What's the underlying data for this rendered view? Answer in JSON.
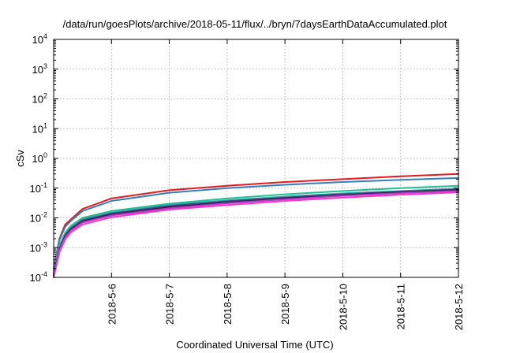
{
  "chart_data": {
    "type": "line",
    "title": "/data/run/goesPlots/archive/2018-05-11/flux/../bryn/7daysEarthDataAccumulated.plot",
    "xlabel": "Coordinated Universal Time (UTC)",
    "ylabel": "cSv",
    "y_scale": "log",
    "ylim": [
      0.0001,
      10000
    ],
    "xlim": [
      "2018-05-05",
      "2018-05-12"
    ],
    "grid": true,
    "legend": "none",
    "x_ticks": [
      "2018-5-6",
      "2018-5-7",
      "2018-5-8",
      "2018-5-9",
      "2018-5-10",
      "2018-5-11",
      "2018-5-12"
    ],
    "y_ticks": [
      {
        "value": 0.0001,
        "base": "10",
        "exp": "-4"
      },
      {
        "value": 0.001,
        "base": "10",
        "exp": "-3"
      },
      {
        "value": 0.01,
        "base": "10",
        "exp": "-2"
      },
      {
        "value": 0.1,
        "base": "10",
        "exp": "-1"
      },
      {
        "value": 1,
        "base": "10",
        "exp": "0"
      },
      {
        "value": 10,
        "base": "10",
        "exp": "1"
      },
      {
        "value": 100,
        "base": "10",
        "exp": "2"
      },
      {
        "value": 1000,
        "base": "10",
        "exp": "3"
      },
      {
        "value": 10000,
        "base": "10",
        "exp": "4"
      }
    ],
    "x": [
      "2018-05-05",
      "2018-05-05 02:24",
      "2018-05-05 04:48",
      "2018-05-05 07:12",
      "2018-05-05 12:00",
      "2018-05-06",
      "2018-05-07",
      "2018-05-08",
      "2018-05-09",
      "2018-05-10",
      "2018-05-11",
      "2018-05-12"
    ],
    "series": [
      {
        "color": "#e41a1c",
        "values": [
          0.0002,
          0.002,
          0.006,
          0.009,
          0.02,
          0.045,
          0.085,
          0.12,
          0.16,
          0.2,
          0.25,
          0.3
        ]
      },
      {
        "color": "#377eb8",
        "values": [
          0.0002,
          0.0018,
          0.005,
          0.008,
          0.017,
          0.037,
          0.07,
          0.1,
          0.13,
          0.16,
          0.19,
          0.22
        ]
      },
      {
        "color": "#1fbf8f",
        "values": [
          0.00015,
          0.0012,
          0.0032,
          0.0055,
          0.01,
          0.017,
          0.03,
          0.045,
          0.062,
          0.08,
          0.1,
          0.12
        ]
      },
      {
        "color": "#2fa4a4",
        "values": [
          0.00013,
          0.001,
          0.0028,
          0.0048,
          0.009,
          0.015,
          0.027,
          0.039,
          0.052,
          0.067,
          0.08,
          0.097
        ]
      },
      {
        "color": "#4a3f8f",
        "values": [
          0.00012,
          0.0009,
          0.0026,
          0.0044,
          0.0082,
          0.014,
          0.025,
          0.036,
          0.048,
          0.062,
          0.076,
          0.09
        ]
      },
      {
        "color": "#332244",
        "values": [
          0.00011,
          0.00085,
          0.0024,
          0.0041,
          0.0076,
          0.013,
          0.023,
          0.033,
          0.045,
          0.058,
          0.072,
          0.086
        ]
      },
      {
        "color": "#b03fc8",
        "values": [
          0.0001,
          0.0008,
          0.0022,
          0.0038,
          0.007,
          0.012,
          0.021,
          0.031,
          0.042,
          0.055,
          0.068,
          0.08
        ]
      },
      {
        "color": "#ff33cc",
        "values": [
          0.0001,
          0.0007,
          0.0019,
          0.0033,
          0.006,
          0.0105,
          0.019,
          0.027,
          0.037,
          0.048,
          0.06,
          0.072
        ]
      }
    ]
  }
}
